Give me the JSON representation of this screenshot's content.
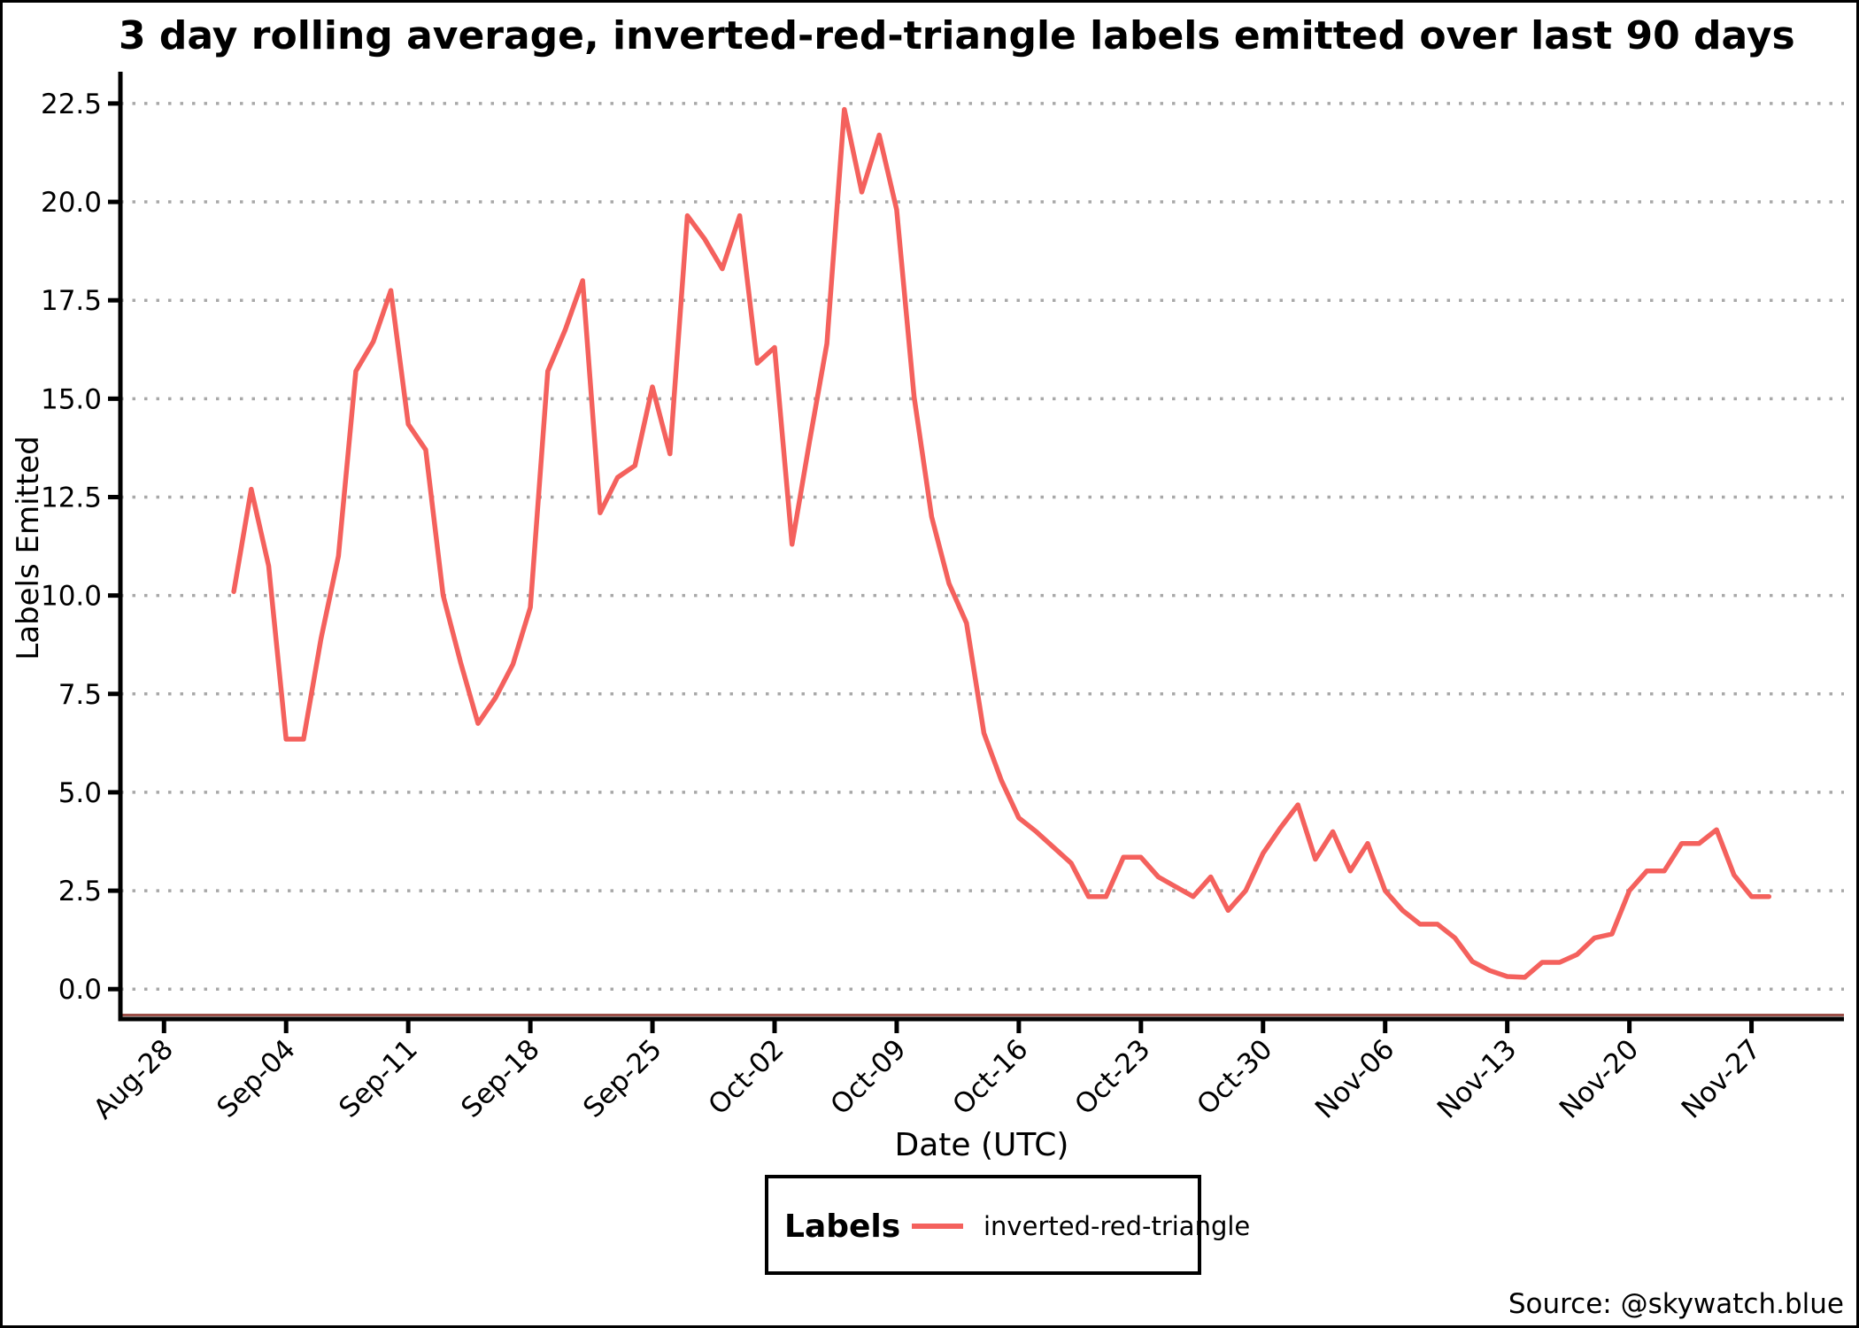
{
  "chart_data": {
    "type": "line",
    "title": "3 day rolling average, inverted-red-triangle labels emitted over last 90 days",
    "xlabel": "Date (UTC)",
    "ylabel": "Labels Emitted",
    "source": "Source: @skywatch.blue",
    "legend": {
      "title": "Labels",
      "series_label": "inverted-red-triangle",
      "position": "bottom-center"
    },
    "line_color": "#f4615d",
    "axis_accent_color": "#9c4f48",
    "grid": {
      "on": true,
      "style": "dotted",
      "color": "#a8a8a8"
    },
    "y_axis": {
      "ticks": [
        "0.0",
        "2.5",
        "5.0",
        "7.5",
        "10.0",
        "12.5",
        "15.0",
        "17.5",
        "20.0",
        "22.5"
      ],
      "range": [
        -0.76,
        23.15
      ]
    },
    "x_axis": {
      "start": "Aug-28",
      "tick_labels": [
        "Aug-28",
        "Sep-04",
        "Sep-11",
        "Sep-18",
        "Sep-25",
        "Oct-02",
        "Oct-09",
        "Oct-16",
        "Oct-23",
        "Oct-30",
        "Nov-06",
        "Nov-13",
        "Nov-20",
        "Nov-27"
      ],
      "range_days": [
        -2.5,
        96.3
      ]
    },
    "x": [
      "Sep-01",
      "Sep-02",
      "Sep-03",
      "Sep-04",
      "Sep-05",
      "Sep-06",
      "Sep-07",
      "Sep-08",
      "Sep-09",
      "Sep-10",
      "Sep-11",
      "Sep-12",
      "Sep-13",
      "Sep-14",
      "Sep-15",
      "Sep-16",
      "Sep-17",
      "Sep-18",
      "Sep-19",
      "Sep-20",
      "Sep-21",
      "Sep-22",
      "Sep-23",
      "Sep-24",
      "Sep-25",
      "Sep-26",
      "Sep-27",
      "Sep-28",
      "Sep-29",
      "Sep-30",
      "Oct-01",
      "Oct-02",
      "Oct-03",
      "Oct-04",
      "Oct-05",
      "Oct-06",
      "Oct-07",
      "Oct-08",
      "Oct-09",
      "Oct-10",
      "Oct-11",
      "Oct-12",
      "Oct-13",
      "Oct-14",
      "Oct-15",
      "Oct-16",
      "Oct-17",
      "Oct-18",
      "Oct-19",
      "Oct-20",
      "Oct-21",
      "Oct-22",
      "Oct-23",
      "Oct-24",
      "Oct-25",
      "Oct-26",
      "Oct-27",
      "Oct-28",
      "Oct-29",
      "Oct-30",
      "Oct-31",
      "Nov-01",
      "Nov-02",
      "Nov-03",
      "Nov-04",
      "Nov-05",
      "Nov-06",
      "Nov-07",
      "Nov-08",
      "Nov-09",
      "Nov-10",
      "Nov-11",
      "Nov-12",
      "Nov-13",
      "Nov-14",
      "Nov-15",
      "Nov-16",
      "Nov-17",
      "Nov-18",
      "Nov-19",
      "Nov-20",
      "Nov-21",
      "Nov-22",
      "Nov-23",
      "Nov-24",
      "Nov-25",
      "Nov-26",
      "Nov-27",
      "Nov-28"
    ],
    "series": [
      {
        "name": "inverted-red-triangle",
        "values": [
          10.1,
          12.7,
          10.75,
          6.35,
          6.35,
          8.9,
          11.0,
          15.7,
          16.45,
          17.75,
          14.35,
          13.7,
          10.0,
          8.3,
          6.75,
          7.4,
          8.25,
          9.7,
          15.7,
          16.75,
          18.0,
          12.1,
          13.0,
          13.3,
          15.3,
          13.6,
          19.65,
          19.05,
          18.3,
          19.65,
          15.9,
          16.3,
          11.3,
          13.9,
          16.4,
          22.35,
          20.25,
          21.7,
          19.8,
          15.05,
          12.0,
          10.3,
          9.3,
          6.5,
          5.3,
          4.35,
          4.0,
          3.6,
          3.2,
          2.35,
          2.35,
          3.35,
          3.35,
          2.85,
          2.6,
          2.35,
          2.85,
          2.0,
          2.5,
          3.45,
          4.1,
          4.68,
          3.3,
          4.0,
          3.0,
          3.7,
          2.5,
          2.0,
          1.65,
          1.65,
          1.3,
          0.7,
          0.47,
          0.32,
          0.3,
          0.68,
          0.68,
          0.88,
          1.3,
          1.4,
          2.5,
          3.0,
          3.0,
          3.7,
          3.7,
          4.05,
          2.9,
          2.35,
          2.35
        ]
      }
    ]
  }
}
